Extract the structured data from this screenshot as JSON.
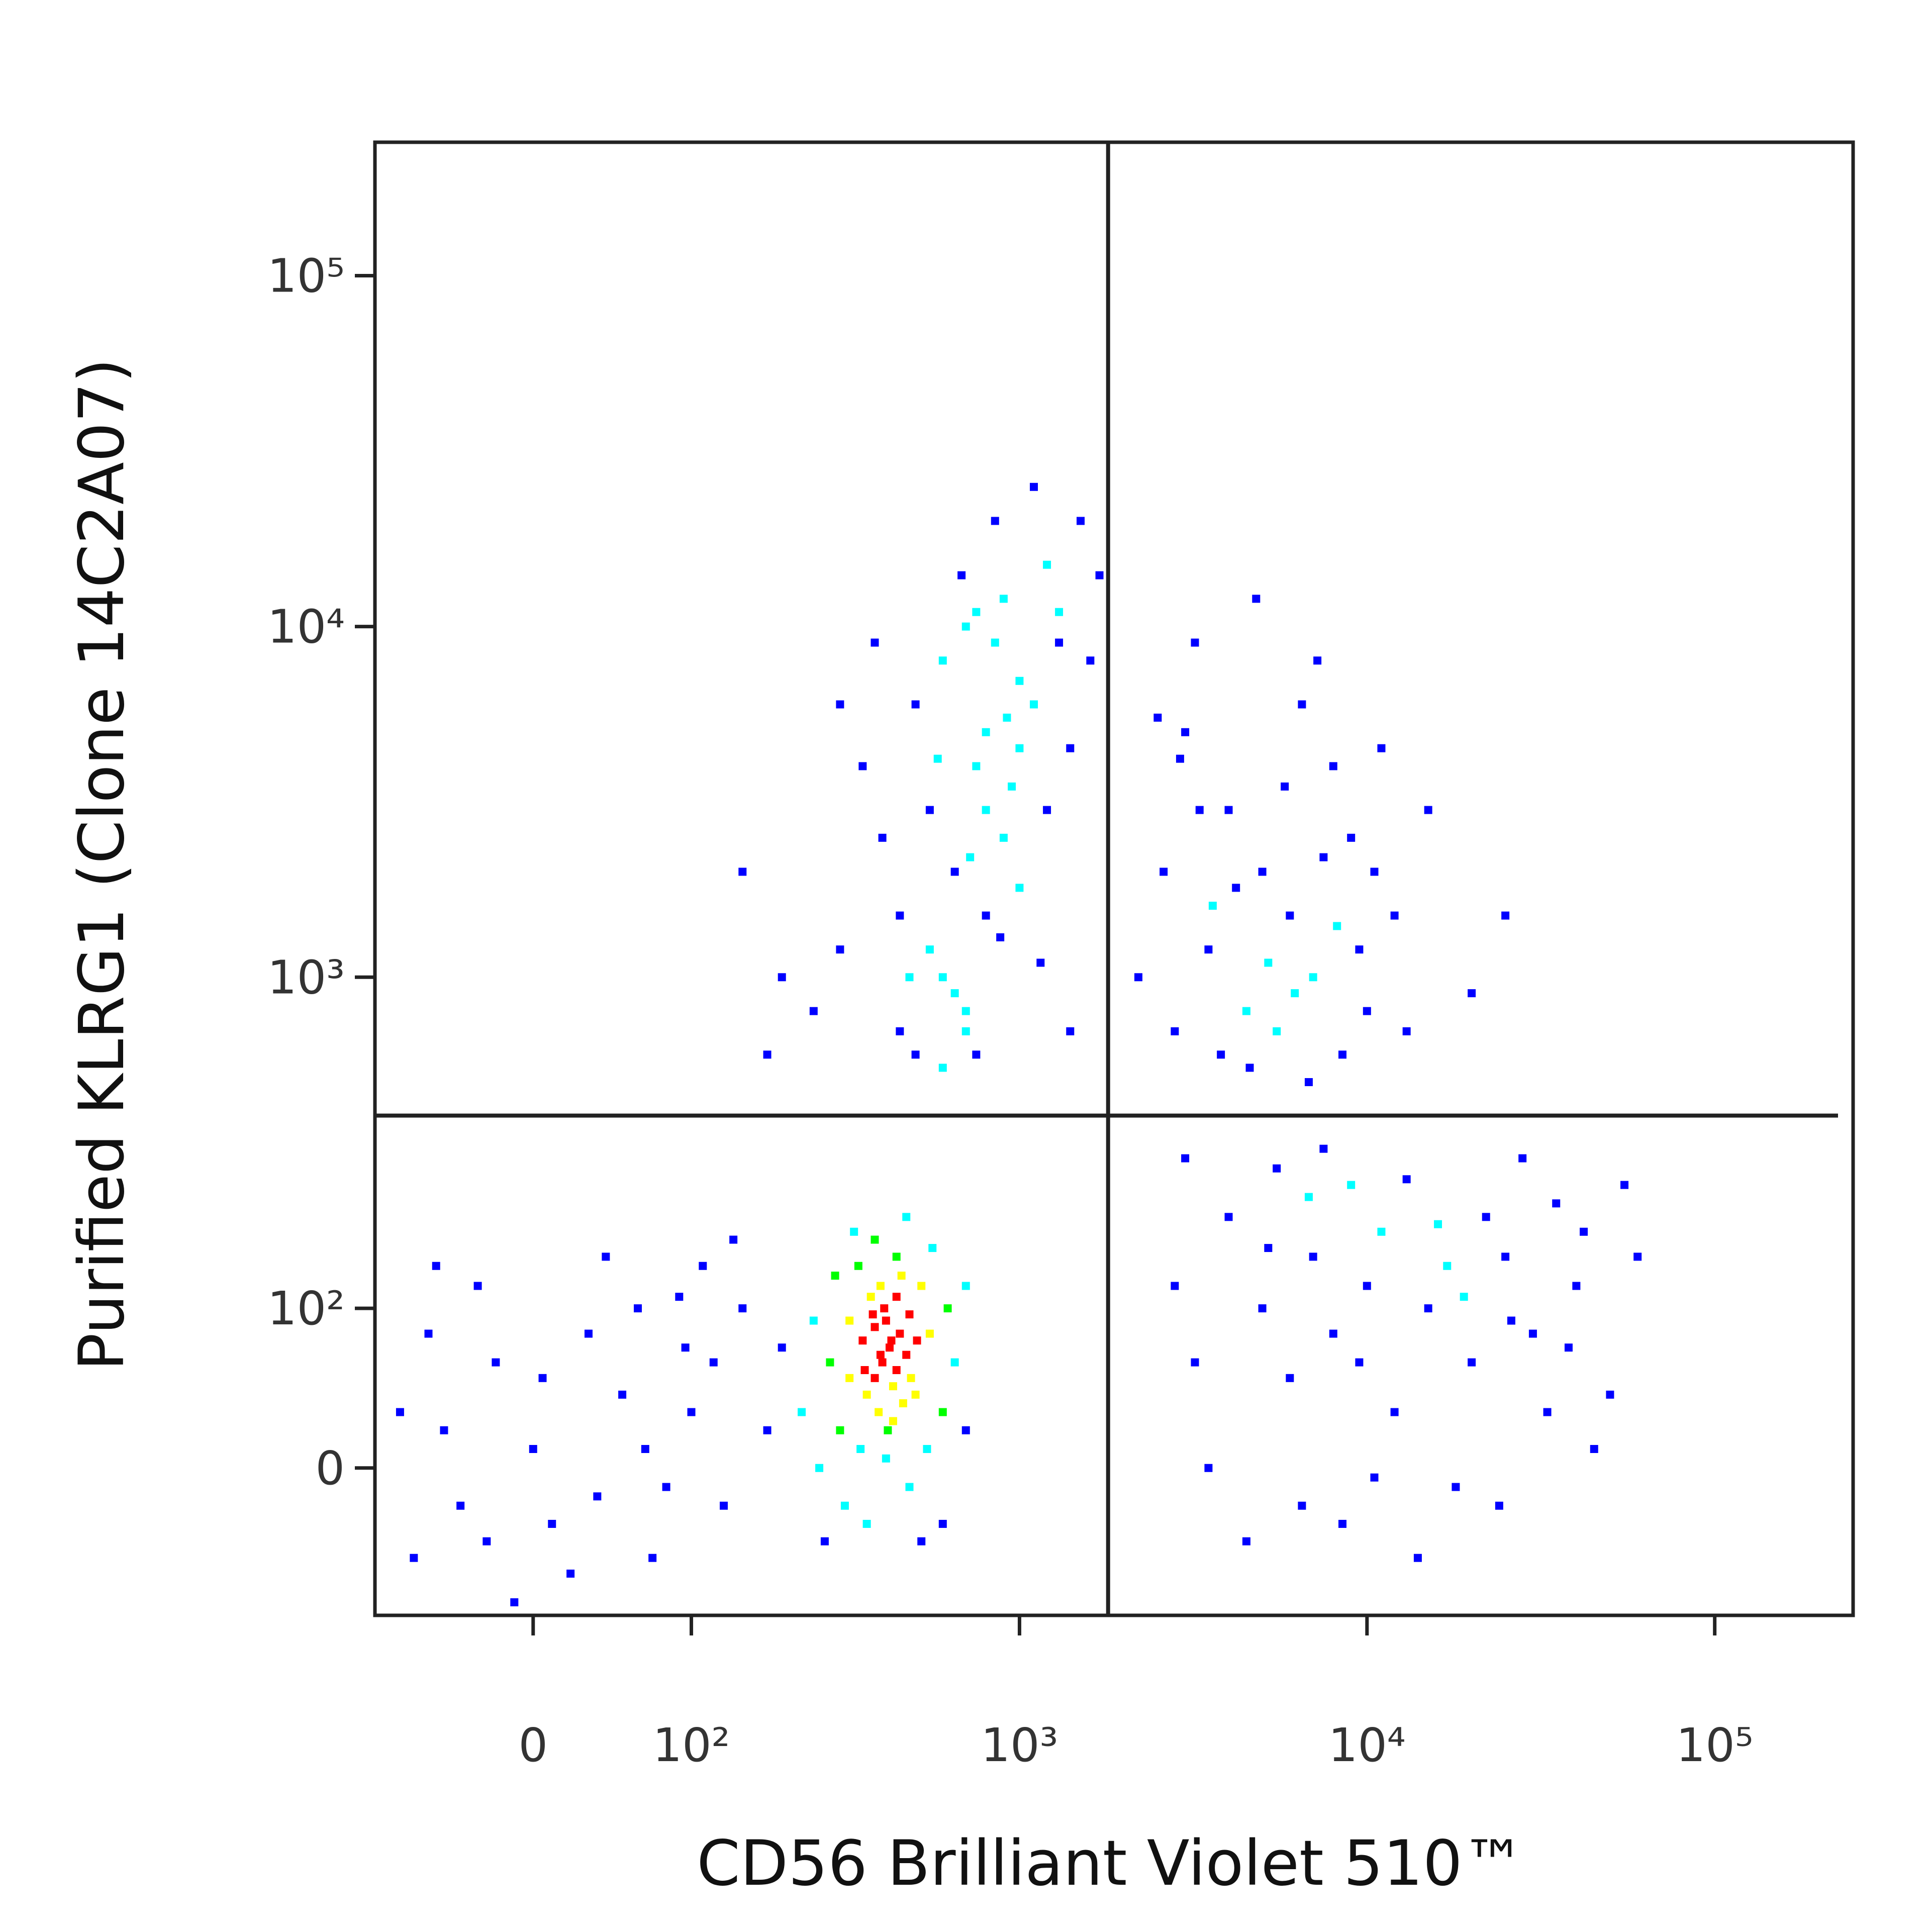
{
  "chart_data": {
    "type": "scatter",
    "x_label": "CD56 Brilliant Violet 510™",
    "y_label": "Purified KLRG1 (Clone 14C2A07)",
    "xscale": "biexponential",
    "yscale": "biexponential",
    "xlim": [
      -100,
      250000
    ],
    "ylim": [
      -90,
      240000
    ],
    "xticks": [
      0,
      {
        "value": 100,
        "label": "10²"
      },
      {
        "value": 1000,
        "label": "10³"
      },
      {
        "value": 10000,
        "label": "10⁴"
      },
      {
        "value": 100000,
        "label": "10⁵"
      }
    ],
    "yticks": [
      0,
      {
        "value": 100,
        "label": "10²"
      },
      {
        "value": 1000,
        "label": "10³"
      },
      {
        "value": 10000,
        "label": "10⁴"
      },
      {
        "value": 100000,
        "label": "10⁵"
      }
    ],
    "gates": {
      "x": 1800,
      "y": 400
    },
    "color_scale": [
      "#0000ff",
      "#00ffff",
      "#00ff00",
      "#ffff00",
      "#ff0000"
    ],
    "x": [
      400,
      420,
      380,
      450,
      360,
      410,
      390,
      440,
      470,
      350,
      430,
      405,
      380,
      460,
      415,
      370,
      480,
      395,
      425,
      355,
      300,
      320,
      500,
      520,
      280,
      550,
      600,
      260,
      310,
      340,
      480,
      540,
      620,
      290,
      250,
      560,
      330,
      650,
      700,
      230,
      600,
      270,
      440,
      380,
      520,
      200,
      180,
      700,
      470,
      360,
      410,
      440,
      395,
      345,
      505,
      375,
      430,
      455,
      320,
      485,
      -50,
      -20,
      10,
      30,
      -70,
      50,
      80,
      -30,
      0,
      60,
      100,
      -60,
      20,
      120,
      -10,
      40,
      90,
      -40,
      70,
      130,
      150,
      -80,
      5,
      110,
      -25,
      65,
      140,
      -55,
      35,
      95,
      500,
      600,
      700,
      800,
      900,
      1000,
      1200,
      550,
      650,
      750,
      850,
      950,
      1100,
      1300,
      1500,
      400,
      450,
      350,
      300,
      250,
      600,
      700,
      800,
      900,
      1000,
      1200,
      1400,
      1600,
      500,
      600,
      700,
      650,
      750,
      550,
      450,
      200,
      180,
      150,
      300,
      380,
      850,
      1100,
      1300,
      1700,
      1000,
      800,
      750,
      680,
      920,
      580,
      480,
      720,
      880,
      1150,
      1400,
      3000,
      4000,
      5000,
      6000,
      7000,
      8000,
      5500,
      4500,
      3500,
      9000,
      10000,
      6500,
      12000,
      15000,
      3200,
      2600,
      2800,
      4200,
      5200,
      7500,
      8500,
      6200,
      3800,
      11000,
      2500,
      4800,
      7200,
      5800,
      3300,
      9500,
      13000,
      20000,
      25000,
      2200,
      6800,
      4600,
      10500,
      3600,
      2900,
      8200,
      5000,
      6000,
      7000,
      8000,
      10000,
      12000,
      15000,
      20000,
      25000,
      30000,
      40000,
      50000,
      4000,
      3500,
      6500,
      9000,
      11000,
      18000,
      22000,
      35000,
      45000,
      3000,
      5500,
      7500,
      13000,
      16000,
      28000,
      55000,
      4500,
      8500,
      14000,
      24000,
      38000,
      60000,
      2800,
      3200,
      9500,
      17000,
      26000,
      33000,
      5200,
      6800,
      10500,
      19000,
      42000
    ],
    "values": [
      60,
      70,
      50,
      80,
      40,
      90,
      30,
      55,
      65,
      75,
      45,
      100,
      85,
      35,
      20,
      110,
      95,
      65,
      75,
      55,
      20,
      90,
      40,
      120,
      60,
      80,
      30,
      0,
      -20,
      140,
      -10,
      10,
      100,
      130,
      90,
      160,
      180,
      60,
      20,
      30,
      -30,
      -40,
      150,
      170,
      -40,
      70,
      20,
      120,
      200,
      -30,
      5,
      110,
      120,
      10,
      75,
      95,
      25,
      130,
      50,
      50,
      20,
      60,
      -30,
      80,
      -50,
      40,
      -10,
      120,
      10,
      100,
      30,
      80,
      -60,
      60,
      -80,
      150,
      110,
      -20,
      -50,
      -20,
      100,
      30,
      50,
      140,
      -40,
      10,
      170,
      140,
      -15,
      70,
      6000,
      8000,
      10000,
      5000,
      12000,
      7000,
      15000,
      3000,
      2000,
      4000,
      9000,
      3500,
      6000,
      9000,
      20000,
      2500,
      1500,
      4000,
      1200,
      800,
      1000,
      700,
      1500,
      2500,
      1800,
      3000,
      4500,
      8000,
      600,
      550,
      800,
      900,
      600,
      1200,
      700,
      1000,
      600,
      2000,
      6000,
      9000,
      20000,
      25000,
      11000,
      14000,
      4500,
      3000,
      11000,
      14000,
      5500,
      4200,
      1000,
      2200,
      1300,
      1100,
      700,
      5000,
      3000,
      2000,
      1500,
      1000,
      4000,
      700,
      800,
      1200,
      2500,
      800,
      6000,
      1500,
      3000,
      9000,
      2000,
      700,
      1800,
      1100,
      2200,
      600,
      900,
      600,
      4500,
      5500,
      12000,
      8000,
      3500,
      3000,
      1200,
      700,
      900,
      1500,
      1000,
      500,
      550,
      2000,
      1600,
      4200,
      1400,
      100,
      50,
      150,
      80,
      120,
      30,
      100,
      60,
      150,
      80,
      120,
      40,
      200,
      0,
      -20,
      250,
      180,
      -10,
      200,
      220,
      10,
      300,
      280,
      320,
      260,
      190,
      300,
      250,
      -40,
      -30,
      -50,
      -20,
      70,
      150,
      120,
      60,
      60,
      140,
      90,
      30,
      160,
      230,
      -5,
      110,
      180
    ]
  }
}
